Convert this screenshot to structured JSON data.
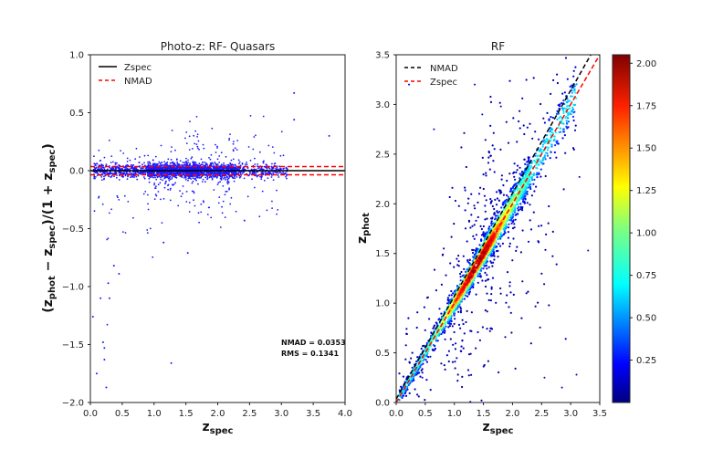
{
  "colors": {
    "points": "#1a1aff",
    "zspec_line_left": "#000000",
    "nmad_line_left": "#ff0000",
    "nmad_line_right": "#000000",
    "zspec_line_right": "#ff0000"
  },
  "chart_data": [
    {
      "type": "scatter",
      "title": "Photo-z: RF- Quasars",
      "xlabel_main": "z",
      "xlabel_sub": "spec",
      "ylabel_text": "(z_phot − z_spec)/(1 + z_spec)",
      "xlim": [
        0.0,
        4.0
      ],
      "ylim": [
        -2.0,
        1.0
      ],
      "xticks": [
        "0.0",
        "0.5",
        "1.0",
        "1.5",
        "2.0",
        "2.5",
        "3.0",
        "3.5",
        "4.0"
      ],
      "yticks": [
        "−2.0",
        "−1.5",
        "−1.0",
        "−0.5",
        "0.0",
        "0.5",
        "1.0"
      ],
      "legend": [
        {
          "label": "Zspec",
          "style": "solid",
          "color": "#000000"
        },
        {
          "label": "NMAD",
          "style": "dashed",
          "color": "#ff0000"
        }
      ],
      "legend_position": "upper-left",
      "lines": [
        {
          "name": "Zspec",
          "y": 0.0
        },
        {
          "name": "NMAD",
          "y": 0.0353
        },
        {
          "name": "NMAD",
          "y": -0.0353
        }
      ],
      "annotations": [
        "NMAD = 0.0353",
        "RMS = 0.1341"
      ],
      "outliers": [
        {
          "x": 0.04,
          "y": -1.26
        },
        {
          "x": 0.1,
          "y": -1.75
        },
        {
          "x": 0.2,
          "y": -1.48
        },
        {
          "x": 0.22,
          "y": -1.53
        },
        {
          "x": 0.22,
          "y": -1.63
        },
        {
          "x": 0.25,
          "y": -1.87
        },
        {
          "x": 0.16,
          "y": -1.1
        },
        {
          "x": 0.3,
          "y": -1.1
        },
        {
          "x": 0.28,
          "y": -0.97
        },
        {
          "x": 0.45,
          "y": -0.89
        },
        {
          "x": 0.37,
          "y": -0.82
        },
        {
          "x": 1.27,
          "y": -1.66
        },
        {
          "x": 3.2,
          "y": 0.67
        },
        {
          "x": 3.2,
          "y": 0.44
        },
        {
          "x": 3.75,
          "y": 0.3
        },
        {
          "x": 2.42,
          "y": -0.43
        },
        {
          "x": 1.15,
          "y": -0.62
        },
        {
          "x": 1.53,
          "y": -0.71
        }
      ],
      "grid": false
    },
    {
      "type": "scatter",
      "title": "RF",
      "xlabel_main": "z",
      "xlabel_sub": "spec",
      "ylabel_main": "z",
      "ylabel_sub": "phot",
      "xlim": [
        0.0,
        3.5
      ],
      "ylim": [
        0.0,
        3.5
      ],
      "xticks": [
        "0.0",
        "0.5",
        "1.0",
        "1.5",
        "2.0",
        "2.5",
        "3.0",
        "3.5"
      ],
      "yticks": [
        "0.0",
        "0.5",
        "1.0",
        "1.5",
        "2.0",
        "2.5",
        "3.0",
        "3.5"
      ],
      "legend": [
        {
          "label": "NMAD",
          "style": "dashed",
          "color": "#000000"
        },
        {
          "label": "Zspec",
          "style": "dashed",
          "color": "#ff0000"
        }
      ],
      "legend_position": "upper-left",
      "lines": [
        {
          "name": "Zspec",
          "x": [
            0.0,
            3.5
          ],
          "y": [
            0.0,
            3.5
          ]
        },
        {
          "name": "NMAD",
          "x": [
            0.0,
            3.5
          ],
          "y": [
            0.035,
            3.66
          ]
        }
      ],
      "colorbar": {
        "ticks": [
          "0.25",
          "0.50",
          "0.75",
          "1.00",
          "1.25",
          "1.50",
          "1.75",
          "2.00"
        ],
        "range": [
          0.0,
          2.05
        ],
        "colormap": "jet"
      },
      "outliers": [
        {
          "x": 0.22,
          "y": 3.2
        },
        {
          "x": 1.35,
          "y": 3.2
        },
        {
          "x": 0.65,
          "y": 2.75
        },
        {
          "x": 3.15,
          "y": 2.27
        },
        {
          "x": 3.3,
          "y": 1.53
        },
        {
          "x": 2.85,
          "y": 0.15
        },
        {
          "x": 3.1,
          "y": 0.28
        },
        {
          "x": 2.55,
          "y": 0.25
        },
        {
          "x": 0.45,
          "y": 0.25
        },
        {
          "x": 1.8,
          "y": 2.98
        },
        {
          "x": 1.48,
          "y": 2.9
        }
      ],
      "grid": false
    }
  ]
}
